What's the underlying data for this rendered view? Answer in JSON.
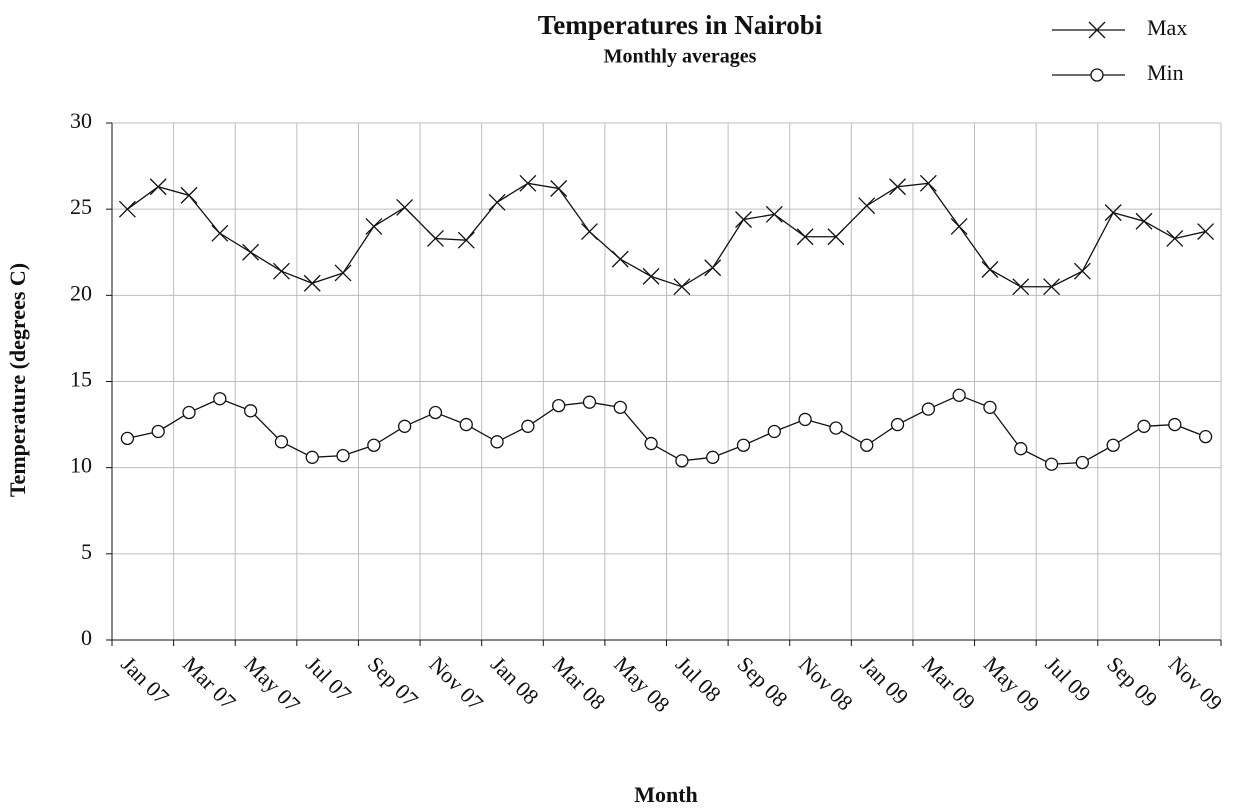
{
  "chart_data": {
    "type": "line",
    "title": "Temperatures in Nairobi",
    "subtitle": "Monthly averages",
    "x_label": "Month",
    "y_label": "Temperature (degrees C)",
    "categories": [
      "Jan 07",
      null,
      "Mar 07",
      null,
      "May 07",
      null,
      "Jul 07",
      null,
      "Sep 07",
      null,
      "Nov 07",
      null,
      "Jan 08",
      null,
      "Mar 08",
      null,
      "May 08",
      null,
      "Jul 08",
      null,
      "Sep 08",
      null,
      "Nov 08",
      null,
      "Jan 09",
      null,
      "Mar 09",
      null,
      "May 09",
      null,
      "Jul 09",
      null,
      "Sep 09",
      null,
      "Nov 09",
      null
    ],
    "series": [
      {
        "name": "Max",
        "color": "#111111",
        "marker": "x",
        "values": [
          25.0,
          26.3,
          25.8,
          23.6,
          22.5,
          21.4,
          20.7,
          21.3,
          24.0,
          25.1,
          23.3,
          23.2,
          25.4,
          26.5,
          26.2,
          23.7,
          22.1,
          21.1,
          20.5,
          21.6,
          24.4,
          24.7,
          23.4,
          23.4,
          25.2,
          26.3,
          26.5,
          24.0,
          21.5,
          20.5,
          20.5,
          21.4,
          24.8,
          24.3,
          23.3,
          23.7
        ]
      },
      {
        "name": "Min",
        "color": "#111111",
        "marker": "o",
        "values": [
          11.7,
          12.1,
          13.2,
          14.0,
          13.3,
          11.5,
          10.6,
          10.7,
          11.3,
          12.4,
          13.2,
          12.5,
          11.5,
          12.4,
          13.6,
          13.8,
          13.5,
          11.4,
          10.4,
          10.6,
          11.3,
          12.1,
          12.8,
          12.3,
          11.3,
          12.5,
          13.4,
          14.2,
          13.5,
          11.1,
          10.2,
          10.3,
          11.3,
          12.4,
          12.5,
          11.8
        ]
      }
    ],
    "ylim": [
      0,
      30
    ],
    "yticks": [
      0,
      5,
      10,
      15,
      20,
      25,
      30
    ],
    "grid": true,
    "legend": "top-right"
  }
}
